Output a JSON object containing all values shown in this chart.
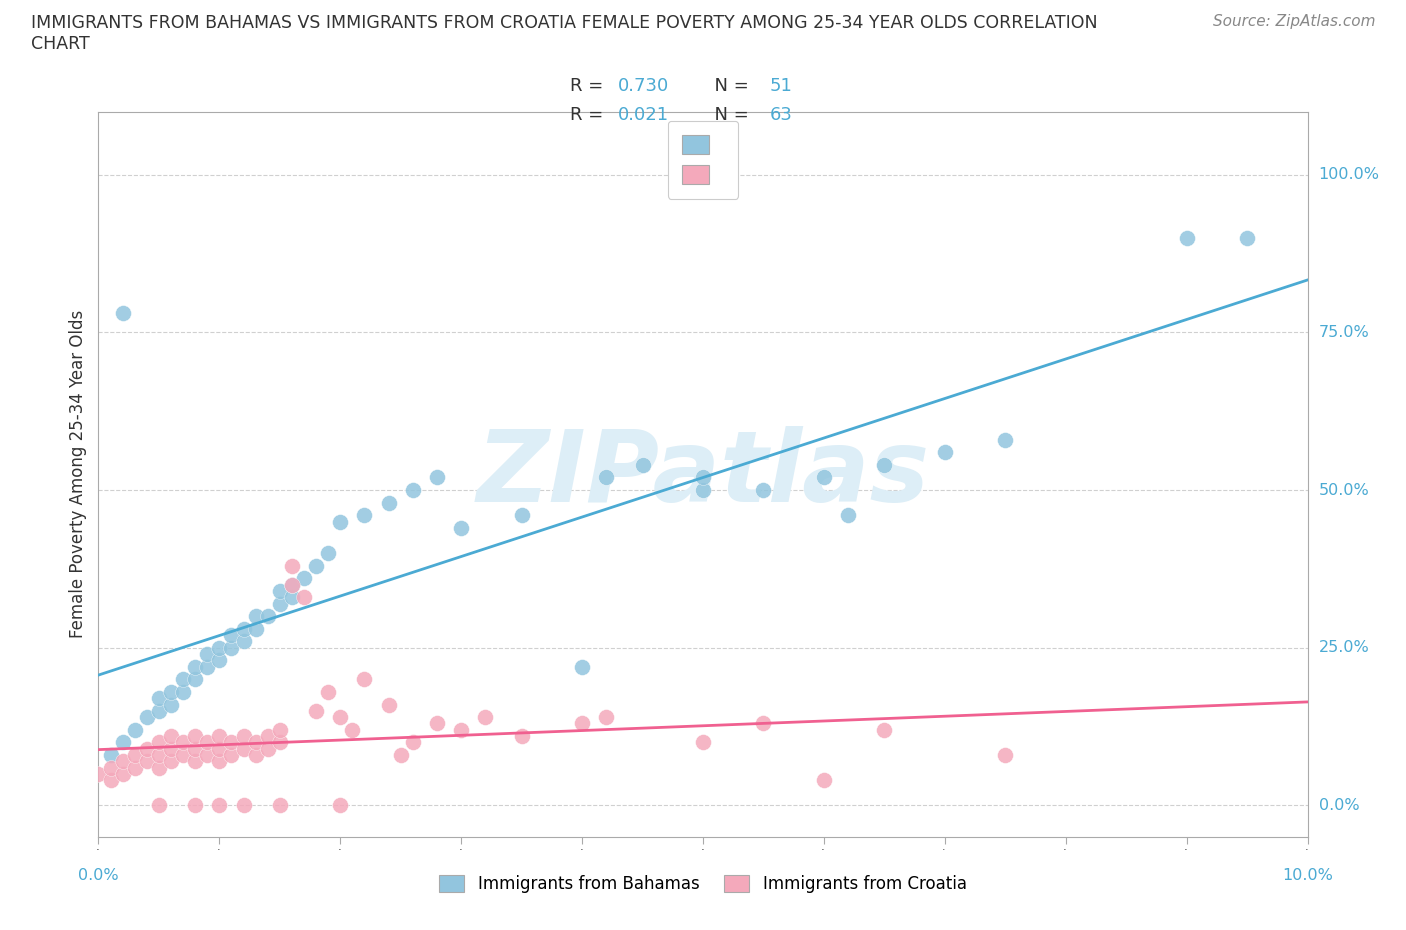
{
  "title_line1": "IMMIGRANTS FROM BAHAMAS VS IMMIGRANTS FROM CROATIA FEMALE POVERTY AMONG 25-34 YEAR OLDS CORRELATION",
  "title_line2": "CHART",
  "source": "Source: ZipAtlas.com",
  "ylabel": "Female Poverty Among 25-34 Year Olds",
  "xmin": 0.0,
  "xmax": 0.1,
  "ymin": -0.05,
  "ymax": 1.1,
  "yticks": [
    0.0,
    0.25,
    0.5,
    0.75,
    1.0
  ],
  "ytick_labels": [
    "0.0%",
    "25.0%",
    "50.0%",
    "75.0%",
    "100.0%"
  ],
  "xtick_labels": [
    "0.0%",
    "",
    "",
    "",
    "",
    "",
    "",
    "",
    "",
    "",
    "10.0%"
  ],
  "watermark": "ZIPatlas",
  "blue_color": "#92C5DE",
  "pink_color": "#F4A9BB",
  "blue_line_color": "#4BAAD3",
  "pink_line_color": "#F06090",
  "grid_color": "#d0d0d0",
  "bahamas_x": [
    0.001,
    0.002,
    0.003,
    0.004,
    0.005,
    0.005,
    0.006,
    0.006,
    0.007,
    0.007,
    0.008,
    0.008,
    0.009,
    0.009,
    0.01,
    0.01,
    0.011,
    0.011,
    0.012,
    0.012,
    0.013,
    0.013,
    0.014,
    0.015,
    0.015,
    0.016,
    0.016,
    0.017,
    0.018,
    0.019,
    0.02,
    0.022,
    0.024,
    0.026,
    0.028,
    0.03,
    0.035,
    0.04,
    0.042,
    0.045,
    0.05,
    0.05,
    0.055,
    0.06,
    0.062,
    0.065,
    0.07,
    0.075,
    0.09,
    0.095,
    0.002
  ],
  "bahamas_y": [
    0.08,
    0.1,
    0.12,
    0.14,
    0.15,
    0.17,
    0.16,
    0.18,
    0.18,
    0.2,
    0.2,
    0.22,
    0.22,
    0.24,
    0.23,
    0.25,
    0.25,
    0.27,
    0.26,
    0.28,
    0.28,
    0.3,
    0.3,
    0.32,
    0.34,
    0.33,
    0.35,
    0.36,
    0.38,
    0.4,
    0.45,
    0.46,
    0.48,
    0.5,
    0.52,
    0.44,
    0.46,
    0.22,
    0.52,
    0.54,
    0.5,
    0.52,
    0.5,
    0.52,
    0.46,
    0.54,
    0.56,
    0.58,
    0.9,
    0.9,
    0.78
  ],
  "croatia_x": [
    0.0,
    0.001,
    0.001,
    0.002,
    0.002,
    0.003,
    0.003,
    0.004,
    0.004,
    0.005,
    0.005,
    0.005,
    0.006,
    0.006,
    0.006,
    0.007,
    0.007,
    0.008,
    0.008,
    0.008,
    0.009,
    0.009,
    0.01,
    0.01,
    0.01,
    0.011,
    0.011,
    0.012,
    0.012,
    0.013,
    0.013,
    0.014,
    0.014,
    0.015,
    0.015,
    0.016,
    0.016,
    0.017,
    0.018,
    0.019,
    0.02,
    0.021,
    0.022,
    0.024,
    0.026,
    0.028,
    0.03,
    0.032,
    0.035,
    0.04,
    0.042,
    0.05,
    0.055,
    0.06,
    0.065,
    0.008,
    0.01,
    0.012,
    0.015,
    0.02,
    0.025,
    0.075,
    0.005
  ],
  "croatia_y": [
    0.05,
    0.04,
    0.06,
    0.05,
    0.07,
    0.06,
    0.08,
    0.07,
    0.09,
    0.06,
    0.08,
    0.1,
    0.07,
    0.09,
    0.11,
    0.08,
    0.1,
    0.07,
    0.09,
    0.11,
    0.08,
    0.1,
    0.07,
    0.09,
    0.11,
    0.08,
    0.1,
    0.09,
    0.11,
    0.08,
    0.1,
    0.09,
    0.11,
    0.1,
    0.12,
    0.35,
    0.38,
    0.33,
    0.15,
    0.18,
    0.14,
    0.12,
    0.2,
    0.16,
    0.1,
    0.13,
    0.12,
    0.14,
    0.11,
    0.13,
    0.14,
    0.1,
    0.13,
    0.04,
    0.12,
    0.0,
    0.0,
    0.0,
    0.0,
    0.0,
    0.08,
    0.08,
    0.0
  ]
}
